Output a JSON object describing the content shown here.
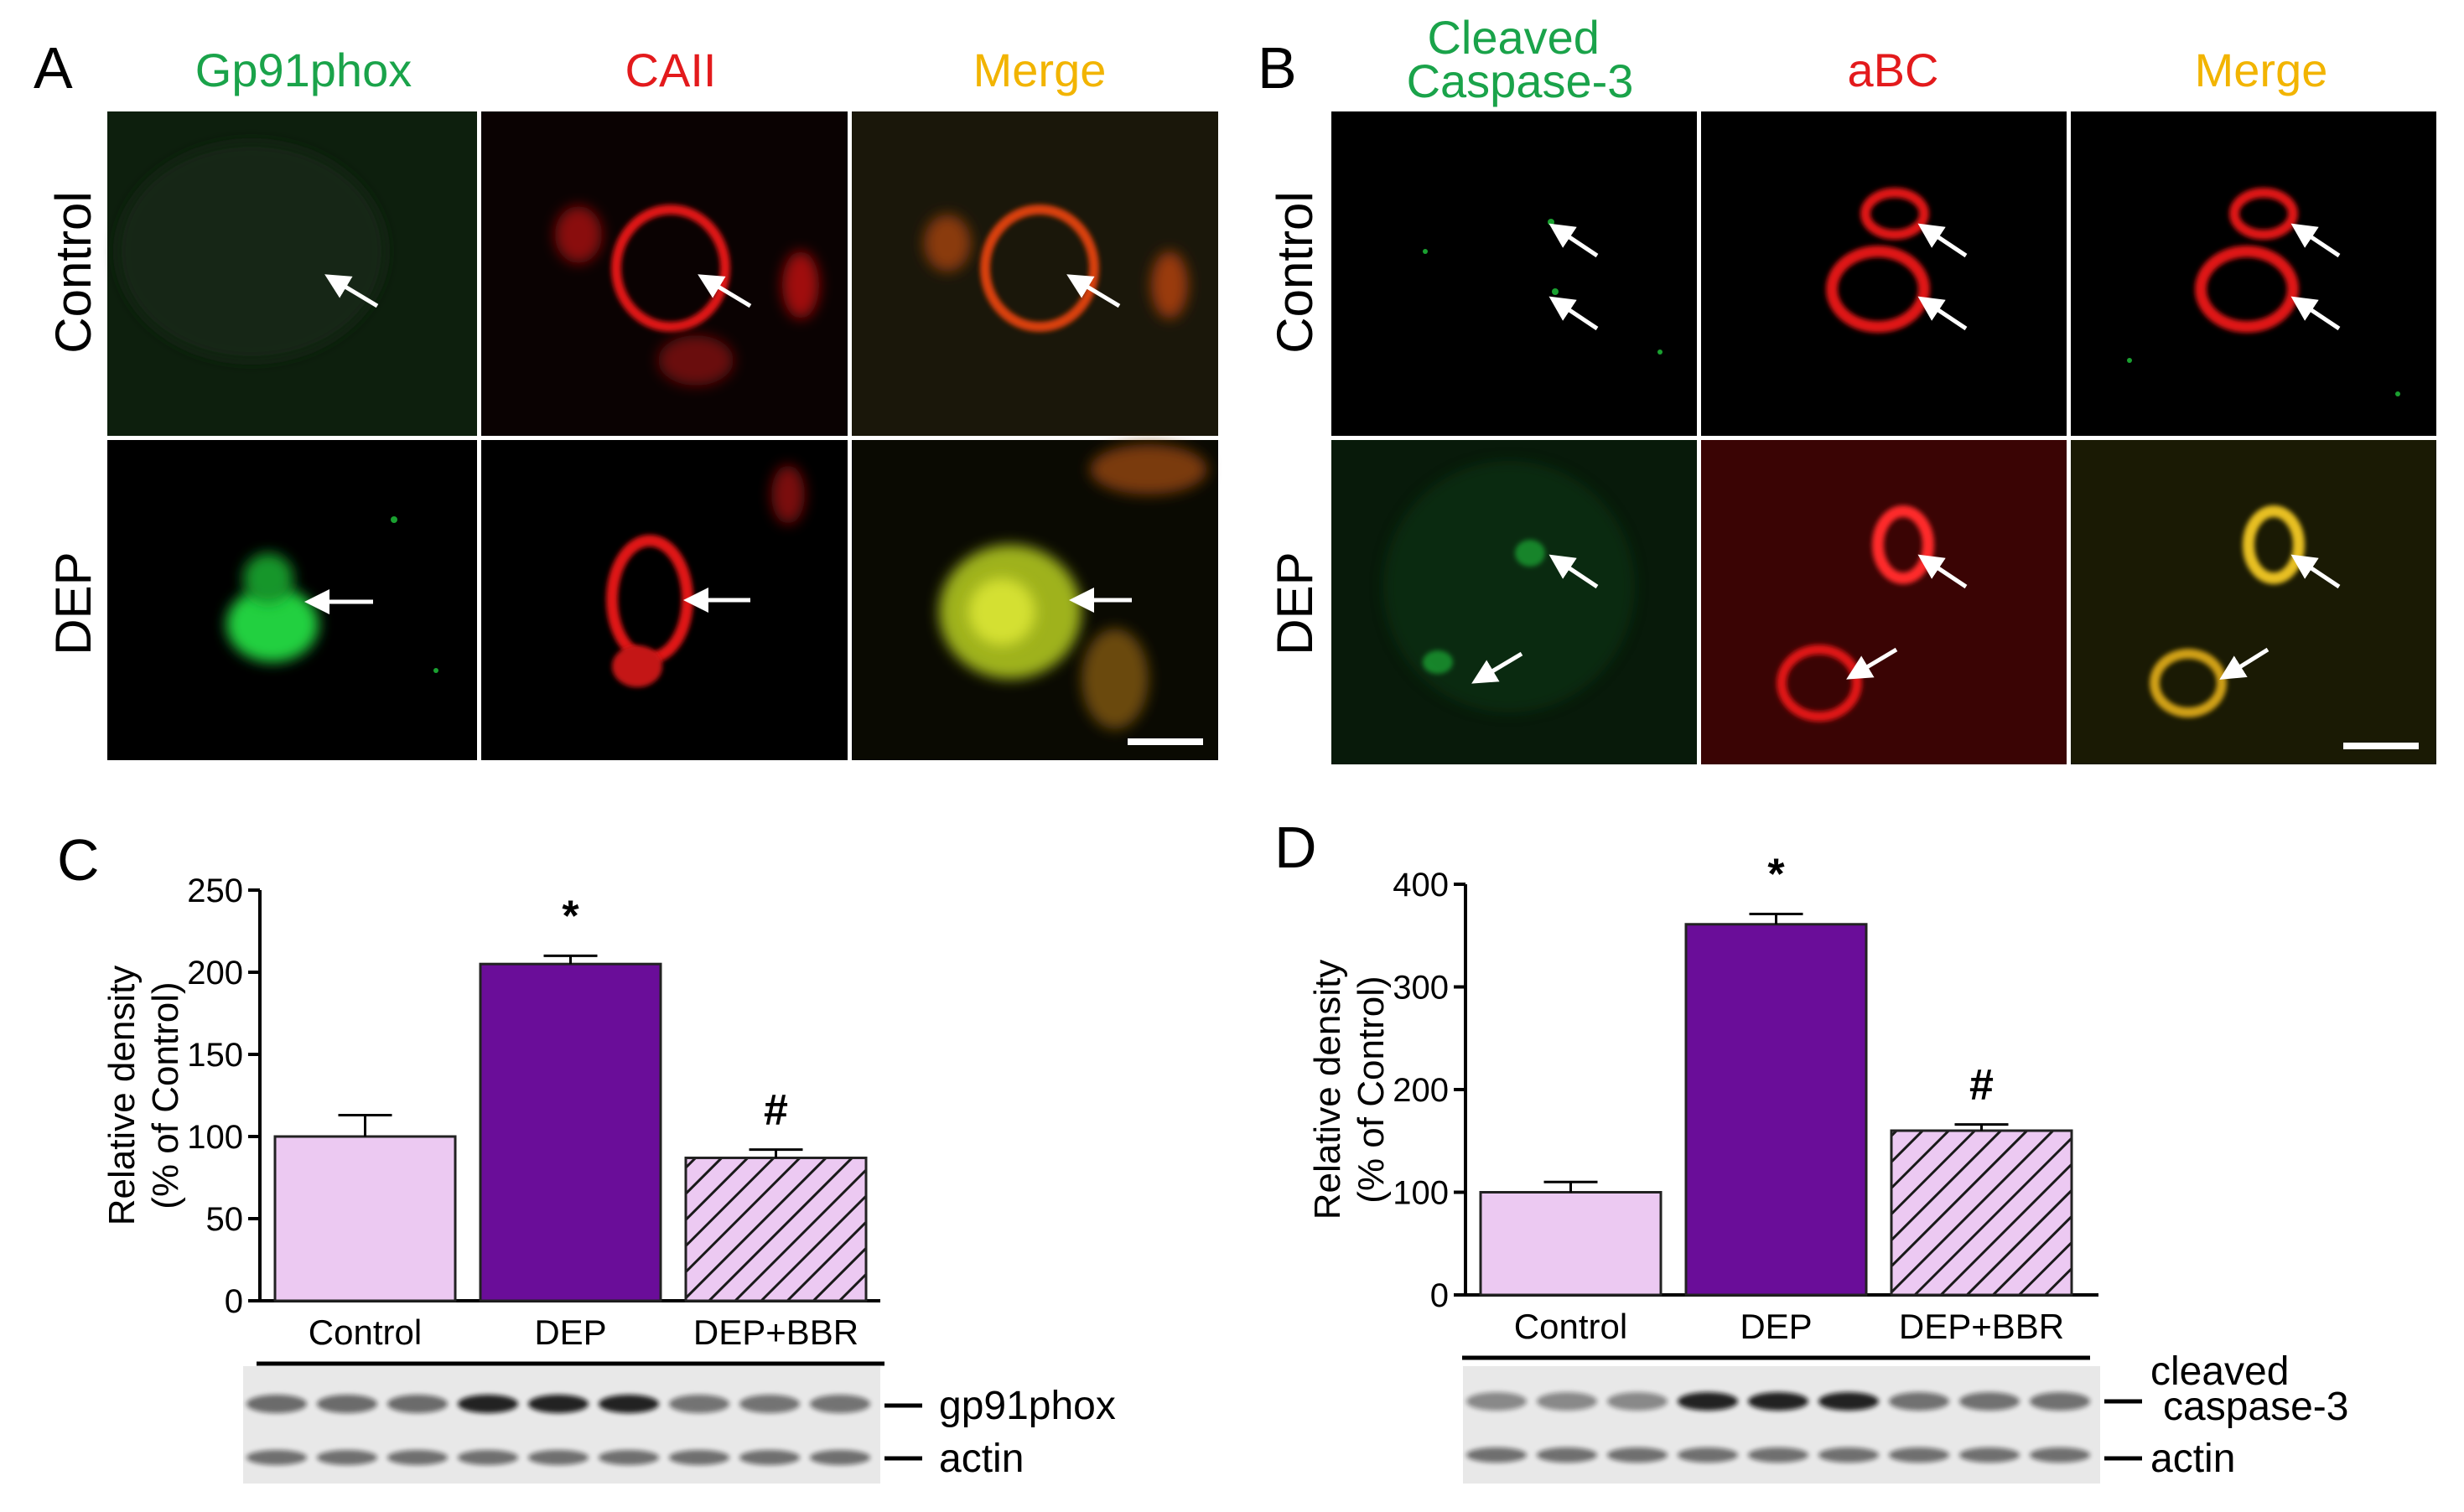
{
  "panels": {
    "A": {
      "letter": "A",
      "columns": [
        "Gp91phox",
        "CAII",
        "Merge"
      ],
      "column_colors": [
        "#1aa34a",
        "#e31a1c",
        "#f2b400"
      ],
      "rows": [
        "Control",
        "DEP"
      ]
    },
    "B": {
      "letter": "B",
      "columns": [
        "Cleaved\nCaspase-3",
        "aBC",
        "Merge"
      ],
      "column_colors": [
        "#1aa34a",
        "#e31a1c",
        "#f2b400"
      ],
      "rows": [
        "Control",
        "DEP"
      ]
    },
    "C": {
      "letter": "C",
      "blot_labels": [
        "gp91phox",
        "actin"
      ]
    },
    "D": {
      "letter": "D",
      "blot_labels": [
        "cleaved\ncaspase-3",
        "actin"
      ]
    }
  },
  "chart_data": [
    {
      "panel": "C",
      "type": "bar",
      "categories": [
        "Control",
        "DEP",
        "DEP+BBR"
      ],
      "values": [
        100,
        205,
        87
      ],
      "errors": [
        13,
        5,
        5
      ],
      "significance": [
        "",
        "*",
        "#"
      ],
      "bar_colors": [
        "#ecc9f2",
        "#6a0d99",
        "#ecc9f2"
      ],
      "bar_hatched": [
        false,
        false,
        true
      ],
      "ylabel": "Relative density\n(% of Control)",
      "ylim": [
        0,
        250
      ],
      "yticks": [
        0,
        50,
        100,
        150,
        200,
        250
      ]
    },
    {
      "panel": "D",
      "type": "bar",
      "categories": [
        "Control",
        "DEP",
        "DEP+BBR"
      ],
      "values": [
        100,
        361,
        160
      ],
      "errors": [
        10,
        10,
        6
      ],
      "significance": [
        "",
        "*",
        "#"
      ],
      "bar_colors": [
        "#ecc9f2",
        "#6a0d99",
        "#ecc9f2"
      ],
      "bar_hatched": [
        false,
        false,
        true
      ],
      "ylabel": "Relative density\n(% of Control)",
      "ylim": [
        0,
        400
      ],
      "yticks": [
        0,
        100,
        200,
        300,
        400
      ]
    }
  ]
}
